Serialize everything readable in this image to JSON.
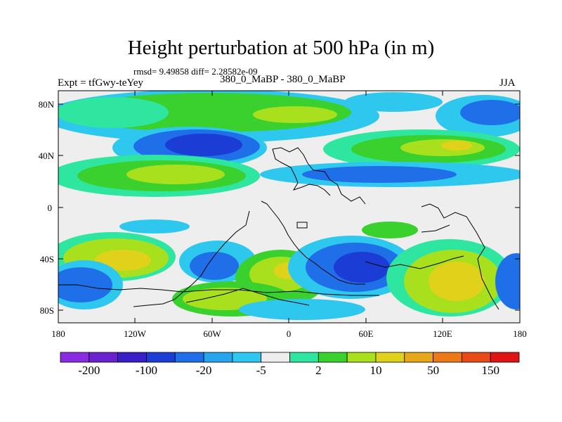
{
  "header": {
    "title": "Height perturbation at 500 hPa (in m)",
    "stats": "rmsd= 9.49858 diff= 2.28582e-09",
    "experiment": "Expt = tfGwy-teYey",
    "comparison": "380_0_MaBP - 380_0_MaBP",
    "season": "JJA"
  },
  "axes": {
    "lat_labels": [
      "80N",
      "40N",
      "0",
      "40S",
      "80S"
    ],
    "lon_labels": [
      "180",
      "120W",
      "60W",
      "0",
      "60E",
      "120E",
      "180"
    ]
  },
  "colorbar": {
    "colors": [
      "#8a2be2",
      "#6a21d0",
      "#3a1fc8",
      "#1b3dd6",
      "#1f6fe8",
      "#26a5ee",
      "#2ec8ee",
      "#eeeeee",
      "#2ee6a0",
      "#3ad12e",
      "#a8e01e",
      "#e0d21a",
      "#e6a81a",
      "#ee7818",
      "#ea4a18",
      "#e01414"
    ],
    "labels": [
      "-200",
      "-100",
      "-20",
      "-5",
      "2",
      "10",
      "50",
      "150"
    ]
  },
  "colors": {
    "neutral": "#eeeeee",
    "deep_neg": "#1b3dd6",
    "mid_neg": "#1f6fe8",
    "light_neg": "#2ec8ee",
    "light_pos": "#2ee6a0",
    "mid_pos": "#3ad12e",
    "high_pos": "#a8e01e",
    "peak_pos": "#e0d21a"
  }
}
